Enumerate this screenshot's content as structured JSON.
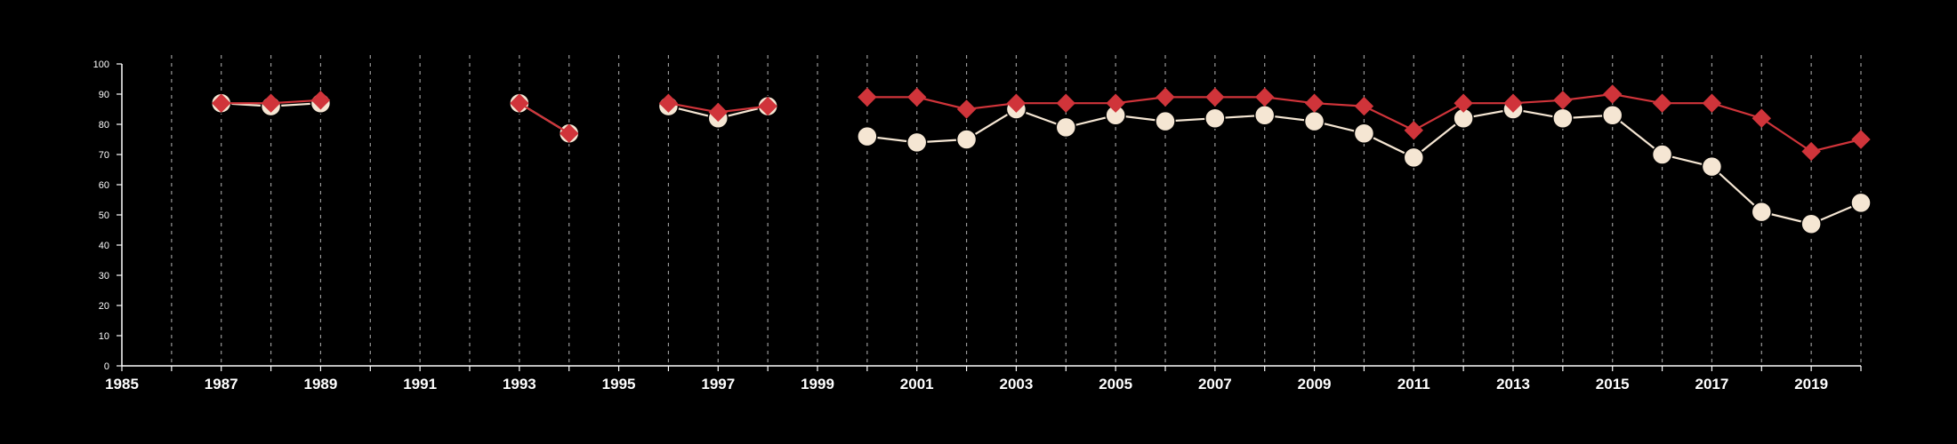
{
  "chart_data": {
    "type": "line",
    "title": "",
    "xlabel": "",
    "ylabel": "",
    "xlim": [
      1985,
      2020
    ],
    "ylim": [
      0,
      100
    ],
    "xticks": [
      "1985",
      "1987",
      "1989",
      "1991",
      "1993",
      "1995",
      "1997",
      "1999",
      "2001",
      "2003",
      "2005",
      "2007",
      "2009",
      "2011",
      "2013",
      "2015",
      "2017",
      "2019"
    ],
    "yticks": [
      "0",
      "10",
      "20",
      "30",
      "40",
      "50",
      "60",
      "70",
      "80",
      "90",
      "100"
    ],
    "grid": "vertical dashed lines at every year",
    "legend": "none",
    "series": [
      {
        "marker": "circle",
        "color": "#f5e6d3",
        "points": [
          [
            1987,
            87
          ],
          [
            1988,
            86
          ],
          [
            1989,
            87
          ],
          [
            1990,
            null
          ],
          [
            1993,
            87
          ],
          [
            1994,
            77
          ],
          [
            1995,
            null
          ],
          [
            1996,
            86
          ],
          [
            1997,
            82
          ],
          [
            1998,
            86
          ],
          [
            1999,
            null
          ],
          [
            2000,
            76
          ],
          [
            2001,
            74
          ],
          [
            2002,
            75
          ],
          [
            2003,
            85
          ],
          [
            2004,
            79
          ],
          [
            2005,
            83
          ],
          [
            2006,
            81
          ],
          [
            2007,
            82
          ],
          [
            2008,
            83
          ],
          [
            2009,
            81
          ],
          [
            2010,
            77
          ],
          [
            2011,
            69
          ],
          [
            2012,
            82
          ],
          [
            2013,
            85
          ],
          [
            2014,
            82
          ],
          [
            2015,
            83
          ],
          [
            2016,
            70
          ],
          [
            2017,
            66
          ],
          [
            2018,
            51
          ],
          [
            2019,
            47
          ],
          [
            2020,
            54
          ]
        ]
      },
      {
        "marker": "diamond",
        "color": "#d0343a",
        "points": [
          [
            1987,
            87
          ],
          [
            1988,
            87
          ],
          [
            1989,
            88
          ],
          [
            1990,
            null
          ],
          [
            1993,
            87
          ],
          [
            1994,
            77
          ],
          [
            1995,
            null
          ],
          [
            1996,
            87
          ],
          [
            1997,
            84
          ],
          [
            1998,
            86
          ],
          [
            1999,
            null
          ],
          [
            2000,
            89
          ],
          [
            2001,
            89
          ],
          [
            2002,
            85
          ],
          [
            2003,
            87
          ],
          [
            2004,
            87
          ],
          [
            2005,
            87
          ],
          [
            2006,
            89
          ],
          [
            2007,
            89
          ],
          [
            2008,
            89
          ],
          [
            2009,
            87
          ],
          [
            2010,
            86
          ],
          [
            2011,
            78
          ],
          [
            2012,
            87
          ],
          [
            2013,
            87
          ],
          [
            2014,
            88
          ],
          [
            2015,
            90
          ],
          [
            2016,
            87
          ],
          [
            2017,
            87
          ],
          [
            2018,
            82
          ],
          [
            2019,
            71
          ],
          [
            2020,
            75
          ]
        ]
      }
    ]
  }
}
